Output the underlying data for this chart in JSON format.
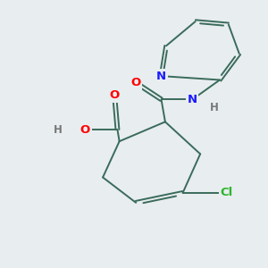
{
  "background_color": "#e8edf0",
  "bond_color": "#3a6b5a",
  "atom_colors": {
    "N": "#1a1aff",
    "O": "#ff0000",
    "Cl": "#2db52d",
    "H": "#787878"
  },
  "lw": 1.4,
  "fs": 9.5
}
